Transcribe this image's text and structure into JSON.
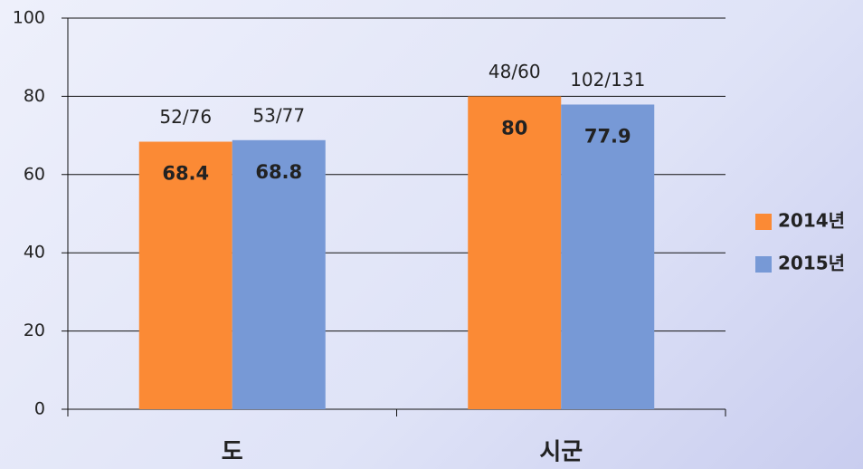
{
  "chart_data": {
    "type": "bar",
    "categories": [
      "도",
      "시군"
    ],
    "series": [
      {
        "name": "2014년",
        "color": "#fb8a35",
        "values": [
          68.4,
          80
        ],
        "annotations": [
          "52/76",
          "48/60"
        ]
      },
      {
        "name": "2015년",
        "color": "#7799d6",
        "values": [
          68.8,
          77.9
        ],
        "annotations": [
          "53/77",
          "102/131"
        ]
      }
    ],
    "ylim": [
      0,
      100
    ],
    "yticks": [
      0,
      20,
      40,
      60,
      80,
      100
    ],
    "grid": true,
    "legend": "right"
  }
}
